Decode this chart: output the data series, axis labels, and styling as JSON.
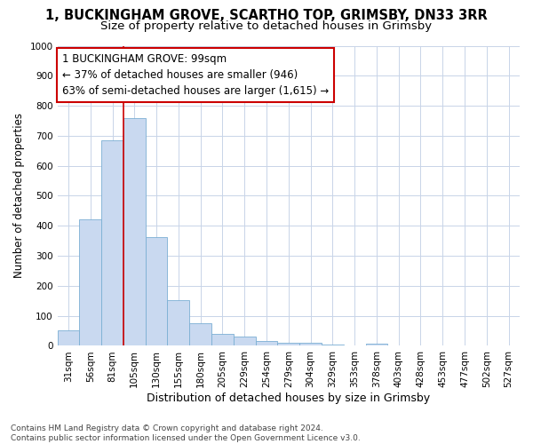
{
  "title1": "1, BUCKINGHAM GROVE, SCARTHO TOP, GRIMSBY, DN33 3RR",
  "title2": "Size of property relative to detached houses in Grimsby",
  "xlabel": "Distribution of detached houses by size in Grimsby",
  "ylabel": "Number of detached properties",
  "categories": [
    "31sqm",
    "56sqm",
    "81sqm",
    "105sqm",
    "130sqm",
    "155sqm",
    "180sqm",
    "205sqm",
    "229sqm",
    "254sqm",
    "279sqm",
    "304sqm",
    "329sqm",
    "353sqm",
    "378sqm",
    "403sqm",
    "428sqm",
    "453sqm",
    "477sqm",
    "502sqm",
    "527sqm"
  ],
  "values": [
    52,
    422,
    685,
    760,
    363,
    152,
    75,
    40,
    30,
    17,
    11,
    9,
    4,
    0,
    8,
    0,
    0,
    0,
    0,
    0,
    0
  ],
  "bar_color": "#c9d9f0",
  "bar_edge_color": "#7bafd4",
  "grid_color": "#c8d4e8",
  "bg_color": "#ffffff",
  "vline_color": "#cc0000",
  "vline_x": 2.5,
  "annotation_text_line1": "1 BUCKINGHAM GROVE: 99sqm",
  "annotation_text_line2": "← 37% of detached houses are smaller (946)",
  "annotation_text_line3": "63% of semi-detached houses are larger (1,615) →",
  "ylim": [
    0,
    1000
  ],
  "yticks": [
    0,
    100,
    200,
    300,
    400,
    500,
    600,
    700,
    800,
    900,
    1000
  ],
  "footer1": "Contains HM Land Registry data © Crown copyright and database right 2024.",
  "footer2": "Contains public sector information licensed under the Open Government Licence v3.0.",
  "title_fontsize": 10.5,
  "subtitle_fontsize": 9.5,
  "tick_fontsize": 7.5,
  "ylabel_fontsize": 8.5,
  "xlabel_fontsize": 9,
  "footer_fontsize": 6.5,
  "annot_fontsize": 8.5
}
